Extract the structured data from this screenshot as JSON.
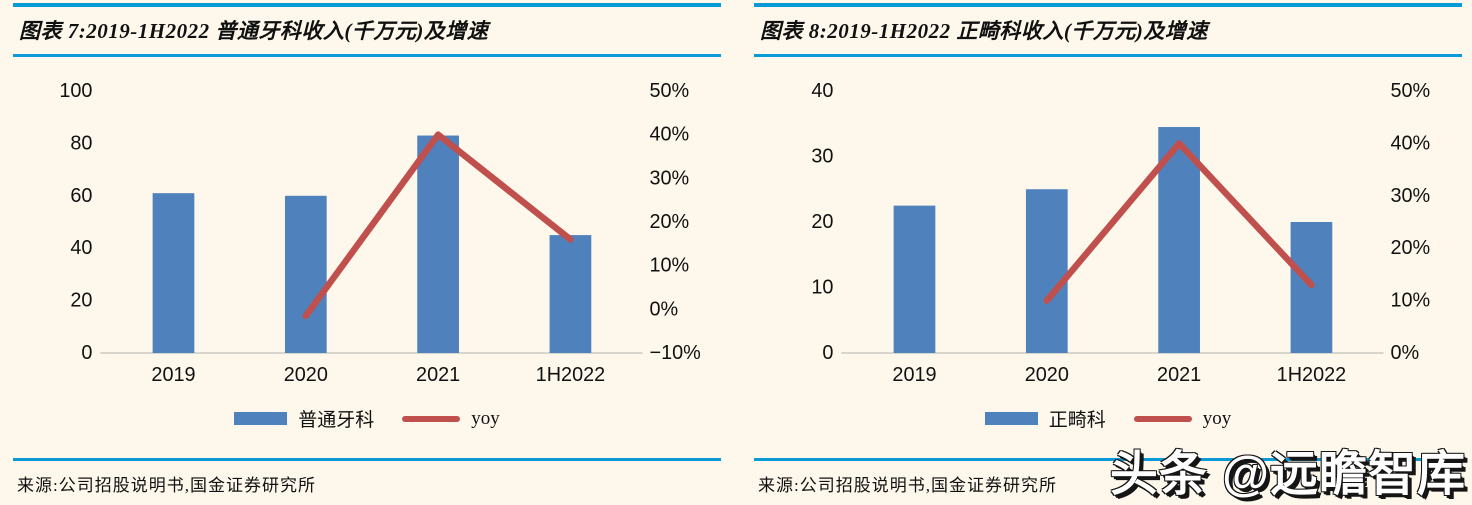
{
  "page": {
    "background": "#FDF8EB",
    "rule_color": "#0A9AD7",
    "bar_color": "#4F81BD",
    "line_color": "#C0504D",
    "watermark": "头条 @远瞻智库"
  },
  "panels": [
    {
      "title": "图表 7:2019-1H2022 普通牙科收入(千万元)及增速",
      "legend": [
        {
          "label": "普通牙科",
          "swatch": "bar-swatch"
        },
        {
          "label": "yoy",
          "swatch": "line-swatch"
        }
      ],
      "source": "来源:公司招股说明书,国金证券研究所"
    },
    {
      "title": "图表 8:2019-1H2022 正畸科收入(千万元)及增速",
      "legend": [
        {
          "label": "正畸科",
          "swatch": "bar-swatch"
        },
        {
          "label": "yoy",
          "swatch": "line-swatch"
        }
      ],
      "source": "来源:公司招股说明书,国金证券研究所"
    }
  ],
  "chart_data": [
    {
      "type": "bar",
      "title": "图表 7:2019-1H2022 普通牙科收入(千万元)及增速",
      "categories": [
        "2019",
        "2020",
        "2021",
        "1H2022"
      ],
      "series": [
        {
          "name": "普通牙科",
          "type": "bar",
          "axis": "left",
          "values": [
            61,
            60,
            83,
            45
          ]
        },
        {
          "name": "yoy",
          "type": "line",
          "axis": "right",
          "values": [
            null,
            -1.5,
            40,
            16
          ]
        }
      ],
      "left_axis": {
        "min": 0,
        "max": 100,
        "ticks": [
          "0",
          "20",
          "40",
          "60",
          "80",
          "100"
        ]
      },
      "right_axis": {
        "min": -10,
        "max": 50,
        "ticks": [
          "−10%",
          "0%",
          "10%",
          "20%",
          "30%",
          "40%",
          "50%"
        ]
      },
      "grid": false,
      "legend_position": "bottom"
    },
    {
      "type": "bar",
      "title": "图表 8:2019-1H2022 正畸科收入(千万元)及增速",
      "categories": [
        "2019",
        "2020",
        "2021",
        "1H2022"
      ],
      "series": [
        {
          "name": "正畸科",
          "type": "bar",
          "axis": "left",
          "values": [
            22.5,
            25,
            34.5,
            20
          ]
        },
        {
          "name": "yoy",
          "type": "line",
          "axis": "right",
          "values": [
            null,
            10,
            40,
            13
          ]
        }
      ],
      "left_axis": {
        "min": 0,
        "max": 40,
        "ticks": [
          "0",
          "10",
          "20",
          "30",
          "40"
        ]
      },
      "right_axis": {
        "min": 0,
        "max": 50,
        "ticks": [
          "0%",
          "10%",
          "20%",
          "30%",
          "40%",
          "50%"
        ]
      },
      "grid": false,
      "legend_position": "bottom"
    }
  ]
}
